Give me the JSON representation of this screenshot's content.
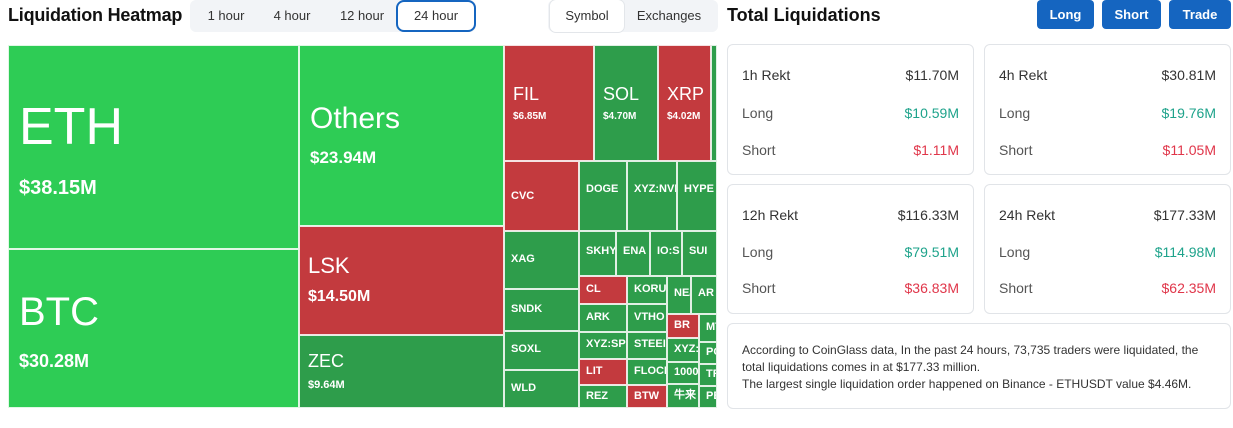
{
  "heatmap": {
    "title": "Liquidation Heatmap",
    "time_tabs": [
      {
        "label": "1 hour",
        "active": false
      },
      {
        "label": "4 hour",
        "active": false
      },
      {
        "label": "12 hour",
        "active": false
      },
      {
        "label": "24 hour",
        "active": true
      }
    ],
    "mode_tabs": [
      {
        "label": "Symbol",
        "active": true
      },
      {
        "label": "Exchanges",
        "active": false
      }
    ],
    "tiles": [
      {
        "symbol": "ETH",
        "value": "$38.15M",
        "color": "#2ecc55"
      },
      {
        "symbol": "BTC",
        "value": "$30.28M",
        "color": "#2ecc55"
      },
      {
        "symbol": "Others",
        "value": "$23.94M",
        "color": "#2ecc55"
      },
      {
        "symbol": "LSK",
        "value": "$14.50M",
        "color": "#c33a3e"
      },
      {
        "symbol": "ZEC",
        "value": "$9.64M",
        "color": "#2e9d4b"
      },
      {
        "symbol": "FIL",
        "value": "$6.85M",
        "color": "#c33a3e"
      },
      {
        "symbol": "SOL",
        "value": "$4.70M",
        "color": "#2e9d4b"
      },
      {
        "symbol": "XRP",
        "value": "$4.02M",
        "color": "#c33a3e"
      },
      {
        "symbol": "",
        "value": "",
        "color": "#2e9d4b"
      },
      {
        "symbol": "CVC",
        "value": "",
        "color": "#c33a3e"
      },
      {
        "symbol": "DOGE",
        "value": "",
        "color": "#2e9d4b"
      },
      {
        "symbol": "XYZ:NVI",
        "value": "",
        "color": "#2e9d4b"
      },
      {
        "symbol": "HYPE",
        "value": "",
        "color": "#2e9d4b"
      },
      {
        "symbol": "XAG",
        "value": "",
        "color": "#2e9d4b"
      },
      {
        "symbol": "SKHY",
        "value": "",
        "color": "#2e9d4b"
      },
      {
        "symbol": "ENA",
        "value": "",
        "color": "#2e9d4b"
      },
      {
        "symbol": "IO:S",
        "value": "",
        "color": "#2e9d4b"
      },
      {
        "symbol": "SUI",
        "value": "",
        "color": "#2e9d4b"
      },
      {
        "symbol": "SNDK",
        "value": "",
        "color": "#2e9d4b"
      },
      {
        "symbol": "SOXL",
        "value": "",
        "color": "#2e9d4b"
      },
      {
        "symbol": "WLD",
        "value": "",
        "color": "#2e9d4b"
      },
      {
        "symbol": "CL",
        "value": "",
        "color": "#c33a3e"
      },
      {
        "symbol": "KORU",
        "value": "",
        "color": "#2e9d4b"
      },
      {
        "symbol": "NE/",
        "value": "",
        "color": "#2e9d4b"
      },
      {
        "symbol": "AR",
        "value": "",
        "color": "#2e9d4b"
      },
      {
        "symbol": "ARK",
        "value": "",
        "color": "#2e9d4b"
      },
      {
        "symbol": "VTHO",
        "value": "",
        "color": "#2e9d4b"
      },
      {
        "symbol": "BR",
        "value": "",
        "color": "#c33a3e"
      },
      {
        "symbol": "MT",
        "value": "",
        "color": "#2e9d4b"
      },
      {
        "symbol": "XYZ:SP",
        "value": "",
        "color": "#2e9d4b"
      },
      {
        "symbol": "STEEI",
        "value": "",
        "color": "#2e9d4b"
      },
      {
        "symbol": "XYZ:",
        "value": "",
        "color": "#2e9d4b"
      },
      {
        "symbol": "PO",
        "value": "",
        "color": "#2e9d4b"
      },
      {
        "symbol": "LIT",
        "value": "",
        "color": "#c33a3e"
      },
      {
        "symbol": "FLOCK",
        "value": "",
        "color": "#2e9d4b"
      },
      {
        "symbol": "1000",
        "value": "",
        "color": "#2e9d4b"
      },
      {
        "symbol": "TR",
        "value": "",
        "color": "#2e9d4b"
      },
      {
        "symbol": "REZ",
        "value": "",
        "color": "#2e9d4b"
      },
      {
        "symbol": "BTW",
        "value": "",
        "color": "#c33a3e"
      },
      {
        "symbol": "牛来",
        "value": "",
        "color": "#2e9d4b"
      },
      {
        "symbol": "PE",
        "value": "",
        "color": "#2e9d4b"
      }
    ]
  },
  "total": {
    "title": "Total Liquidations",
    "buttons": [
      "Long",
      "Short",
      "Trade"
    ],
    "cards": [
      {
        "period": "1h Rekt",
        "total": "$11.70M",
        "long_label": "Long",
        "long": "$10.59M",
        "short_label": "Short",
        "short": "$1.11M"
      },
      {
        "period": "4h Rekt",
        "total": "$30.81M",
        "long_label": "Long",
        "long": "$19.76M",
        "short_label": "Short",
        "short": "$11.05M"
      },
      {
        "period": "12h Rekt",
        "total": "$116.33M",
        "long_label": "Long",
        "long": "$79.51M",
        "short_label": "Short",
        "short": "$36.83M"
      },
      {
        "period": "24h Rekt",
        "total": "$177.33M",
        "long_label": "Long",
        "long": "$114.98M",
        "short_label": "Short",
        "short": "$62.35M"
      }
    ],
    "summary_line1": "According to CoinGlass data, In the past 24 hours, 73,735 traders were liquidated, the total liquidations comes in at $177.33 million.",
    "summary_line2": "The largest single liquidation order happened on Binance - ETHUSDT value $4.46M."
  },
  "colors": {
    "accent": "#1565c0",
    "long_green": "#1ea38b",
    "short_red": "#e0364a",
    "tile_bright_green": "#2ecc55",
    "tile_green": "#2e9d4b",
    "tile_red": "#c33a3e"
  }
}
